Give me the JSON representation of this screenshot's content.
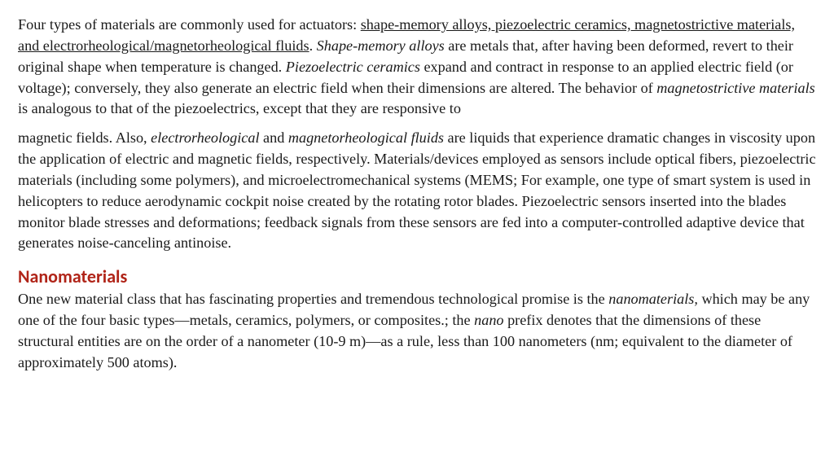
{
  "para1": {
    "lead": "Four types of materials are commonly used for actuators: ",
    "underlined": "shape-memory alloys, piezoelectric ceramics, magnetostrictive materials, and electrorheological/magnetorheological fluids",
    "after_u": ". ",
    "ital_sma": "Shape-memory alloys",
    "sma_text": " are metals that, after having been deformed, revert to their original shape when temperature is changed. ",
    "ital_piezo": "Piezoelectric ceramics",
    "piezo_text": " expand and contract in response to an applied electric field (or voltage); conversely, they also generate an electric field when their dimensions are altered. The behavior of ",
    "ital_mag": "magnetostrictive materials",
    "mag_text": " is analogous to that of the piezoelectrics, except that they are responsive to"
  },
  "para2": {
    "lead": "magnetic fields. Also, ",
    "ital1": "electrorheological",
    "mid1": " and ",
    "ital2": "magnetorheological fluids",
    "rest": " are liquids that experience dramatic changes in viscosity upon the application of electric and magnetic fields, respectively. Materials/devices employed as sensors include optical fibers, piezoelectric materials (including some polymers), and microelectromechanical systems (MEMS; For example, one type of smart system is used in helicopters to reduce aerodynamic cockpit noise created by the rotating rotor blades. Piezoelectric sensors inserted into the blades monitor blade stresses and deformations; feedback signals from these sensors are fed into a computer-controlled adaptive device that generates noise-canceling antinoise."
  },
  "heading": "Nanomaterials",
  "para3": {
    "lead": "One new material class that has fascinating properties and tremendous technological promise is the ",
    "ital1": "nanomaterials,",
    "mid": " which may be any one of the four basic types—metals, ceramics, polymers, or composites.; the ",
    "ital2": "nano",
    "rest": " prefix denotes that the dimensions of these structural entities are on the order of a nanometer (10-9 m)—as a rule, less than 100 nanometers (nm; equivalent to the diameter of approximately 500 atoms)."
  },
  "colors": {
    "heading": "#b02418",
    "body": "#1a1a1a",
    "background": "#ffffff"
  }
}
